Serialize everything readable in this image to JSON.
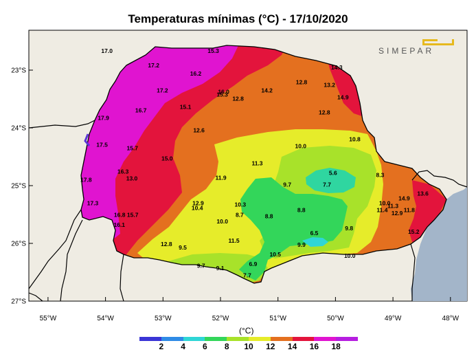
{
  "title": "Temperaturas mínimas (°C) - 17/10/2020",
  "logo_text": "SIMEPAR",
  "legend": {
    "unit": "(°C)",
    "ticks": [
      "2",
      "4",
      "6",
      "8",
      "10",
      "12",
      "14",
      "16",
      "18"
    ],
    "colors": [
      "#3a35d6",
      "#2f8be6",
      "#2fd6d6",
      "#33d65a",
      "#a8e22a",
      "#e6ec2a",
      "#e4701f",
      "#e3143c",
      "#e014d0",
      "#b61ee0"
    ]
  },
  "axes": {
    "lat_labels": [
      "23°S",
      "24°S",
      "25°S",
      "26°S",
      "27°S"
    ],
    "lon_labels": [
      "55°W",
      "54°W",
      "53°W",
      "52°W",
      "51°W",
      "50°W",
      "49°W",
      "48°W"
    ]
  },
  "colors": {
    "background": "#efece3",
    "ocean": "#a3b5c9",
    "magenta": "#e014d0",
    "red": "#e3143c",
    "orange": "#e4701f",
    "yellow": "#e6ec2a",
    "lime": "#a8e22a",
    "green": "#33d65a"
  },
  "temperatures": [
    {
      "v": "17.0",
      "lon": -53.975,
      "lat": -22.668
    },
    {
      "v": "15.3",
      "lon": -52.125,
      "lat": -22.668
    },
    {
      "v": "17.2",
      "lon": -53.163,
      "lat": -22.917
    },
    {
      "v": "16.2",
      "lon": -52.43,
      "lat": -23.06
    },
    {
      "v": "14.3",
      "lon": -49.977,
      "lat": -22.953
    },
    {
      "v": "12.8",
      "lon": -50.59,
      "lat": -23.209
    },
    {
      "v": "13.2",
      "lon": -50.104,
      "lat": -23.257
    },
    {
      "v": "17.2",
      "lon": -53.011,
      "lat": -23.352
    },
    {
      "v": "16.0",
      "lon": -51.945,
      "lat": -23.376
    },
    {
      "v": "15.3",
      "lon": -51.969,
      "lat": -23.424
    },
    {
      "v": "14.2",
      "lon": -51.192,
      "lat": -23.352
    },
    {
      "v": "14.9",
      "lon": -49.87,
      "lat": -23.471
    },
    {
      "v": "12.8",
      "lon": -51.694,
      "lat": -23.495
    },
    {
      "v": "15.1",
      "lon": -52.609,
      "lat": -23.637
    },
    {
      "v": "16.7",
      "lon": -53.384,
      "lat": -23.697
    },
    {
      "v": "12.8",
      "lon": -50.192,
      "lat": -23.733
    },
    {
      "v": "17.9",
      "lon": -54.036,
      "lat": -23.828
    },
    {
      "v": "12.6",
      "lon": -52.375,
      "lat": -24.041
    },
    {
      "v": "10.8",
      "lon": -49.664,
      "lat": -24.196
    },
    {
      "v": "17.5",
      "lon": -54.06,
      "lat": -24.291
    },
    {
      "v": "10.0",
      "lon": -50.605,
      "lat": -24.315
    },
    {
      "v": "15.7",
      "lon": -53.532,
      "lat": -24.35
    },
    {
      "v": "15.0",
      "lon": -52.929,
      "lat": -24.529
    },
    {
      "v": "11.3",
      "lon": -51.361,
      "lat": -24.612
    },
    {
      "v": "16.3",
      "lon": -53.695,
      "lat": -24.755
    },
    {
      "v": "5.6",
      "lon": -50.043,
      "lat": -24.778
    },
    {
      "v": "8.3",
      "lon": -49.223,
      "lat": -24.814
    },
    {
      "v": "11.9",
      "lon": -51.993,
      "lat": -24.862
    },
    {
      "v": "13.0",
      "lon": -53.541,
      "lat": -24.873
    },
    {
      "v": "17.8",
      "lon": -54.338,
      "lat": -24.897
    },
    {
      "v": "9.7",
      "lon": -50.839,
      "lat": -24.98
    },
    {
      "v": "7.7",
      "lon": -50.147,
      "lat": -24.98
    },
    {
      "v": "13.6",
      "lon": -48.48,
      "lat": -25.134
    },
    {
      "v": "17.3",
      "lon": -54.222,
      "lat": -25.301
    },
    {
      "v": "12.9",
      "lon": -52.389,
      "lat": -25.301
    },
    {
      "v": "10.3",
      "lon": -51.656,
      "lat": -25.325
    },
    {
      "v": "10.0",
      "lon": -49.143,
      "lat": -25.301
    },
    {
      "v": "14.9",
      "lon": -48.805,
      "lat": -25.218
    },
    {
      "v": "11.3",
      "lon": -49.001,
      "lat": -25.349
    },
    {
      "v": "10.4",
      "lon": -52.404,
      "lat": -25.384
    },
    {
      "v": "11.8",
      "lon": -48.717,
      "lat": -25.42
    },
    {
      "v": "11.4",
      "lon": -49.187,
      "lat": -25.42
    },
    {
      "v": "8.8",
      "lon": -50.593,
      "lat": -25.42
    },
    {
      "v": "8.7",
      "lon": -51.667,
      "lat": -25.503
    },
    {
      "v": "8.8",
      "lon": -51.156,
      "lat": -25.527
    },
    {
      "v": "16.8",
      "lon": -53.754,
      "lat": -25.503
    },
    {
      "v": "15.7",
      "lon": -53.527,
      "lat": -25.503
    },
    {
      "v": "12.9",
      "lon": -48.928,
      "lat": -25.479
    },
    {
      "v": "10.0",
      "lon": -51.968,
      "lat": -25.622
    },
    {
      "v": "16.1",
      "lon": -53.759,
      "lat": -25.681
    },
    {
      "v": "9.8",
      "lon": -49.764,
      "lat": -25.741
    },
    {
      "v": "6.5",
      "lon": -50.369,
      "lat": -25.824
    },
    {
      "v": "15.2",
      "lon": -48.64,
      "lat": -25.8
    },
    {
      "v": "11.5",
      "lon": -51.766,
      "lat": -25.955
    },
    {
      "v": "12.8",
      "lon": -52.94,
      "lat": -26.014
    },
    {
      "v": "9.5",
      "lon": -52.657,
      "lat": -26.074
    },
    {
      "v": "9.9",
      "lon": -50.591,
      "lat": -26.026
    },
    {
      "v": "10.5",
      "lon": -51.047,
      "lat": -26.193
    },
    {
      "v": "10.0",
      "lon": -49.751,
      "lat": -26.217
    },
    {
      "v": "6.9",
      "lon": -51.433,
      "lat": -26.36
    },
    {
      "v": "9.7",
      "lon": -52.338,
      "lat": -26.384
    },
    {
      "v": "9.1",
      "lon": -52.005,
      "lat": -26.431
    },
    {
      "v": "7.7",
      "lon": -51.535,
      "lat": -26.551
    }
  ]
}
